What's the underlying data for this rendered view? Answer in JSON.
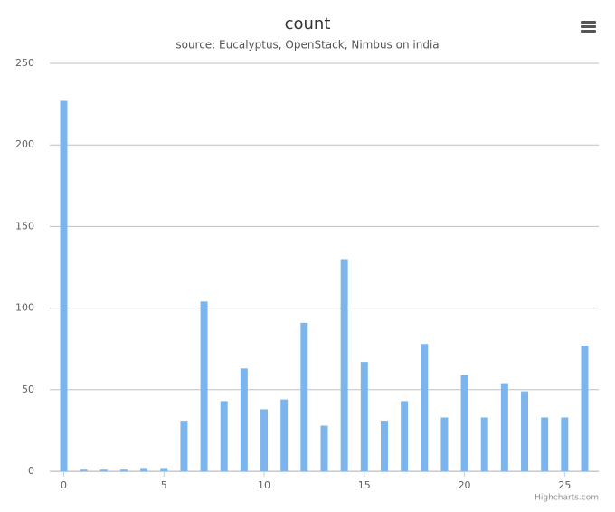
{
  "chart_data": {
    "type": "bar",
    "title": "count",
    "subtitle": "source: Eucalyptus, OpenStack, Nimbus on india",
    "x": [
      0,
      1,
      2,
      3,
      4,
      5,
      6,
      7,
      8,
      9,
      10,
      11,
      12,
      13,
      14,
      15,
      16,
      17,
      18,
      19,
      20,
      21,
      22,
      23,
      24,
      25,
      26
    ],
    "values": [
      227,
      1,
      1,
      1,
      2,
      2,
      31,
      104,
      43,
      63,
      38,
      44,
      91,
      28,
      130,
      67,
      31,
      43,
      78,
      33,
      59,
      33,
      54,
      49,
      33,
      33,
      77
    ],
    "color": "#7cb5ec",
    "xlim": [
      -0.7,
      26.7
    ],
    "xticks": [
      0,
      5,
      10,
      15,
      20,
      25
    ],
    "ylim": [
      0,
      250
    ],
    "yticks": [
      0,
      50,
      100,
      150,
      200,
      250
    ],
    "grid": true,
    "credits": "Highcharts.com"
  }
}
